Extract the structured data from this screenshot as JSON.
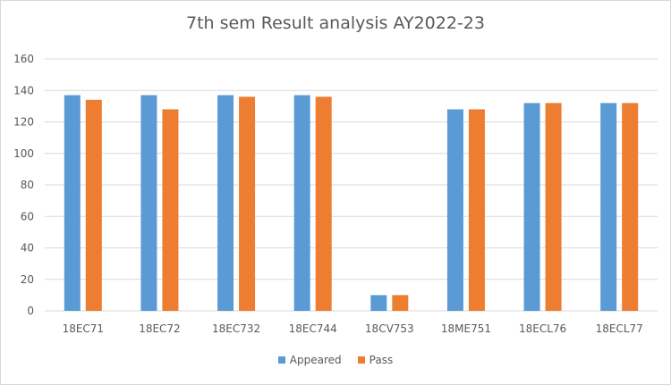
{
  "chart_data": {
    "type": "bar",
    "title": "7th sem Result analysis AY2022-23",
    "categories": [
      "18EC71",
      "18EC72",
      "18EC732",
      "18EC744",
      "18CV753",
      "18ME751",
      "18ECL76",
      "18ECL77"
    ],
    "series": [
      {
        "name": "Appeared",
        "color": "#5b9bd5",
        "values": [
          137,
          137,
          137,
          137,
          10,
          128,
          132,
          132
        ]
      },
      {
        "name": "Pass",
        "color": "#ed7d31",
        "values": [
          134,
          128,
          136,
          136,
          10,
          128,
          132,
          132
        ]
      }
    ],
    "yticks": [
      "0",
      "20",
      "40",
      "60",
      "80",
      "100",
      "120",
      "140",
      "160"
    ],
    "ylim": [
      0,
      160
    ],
    "grid": true,
    "gridColor": "#d9d9d9",
    "legend_position": "bottom"
  }
}
